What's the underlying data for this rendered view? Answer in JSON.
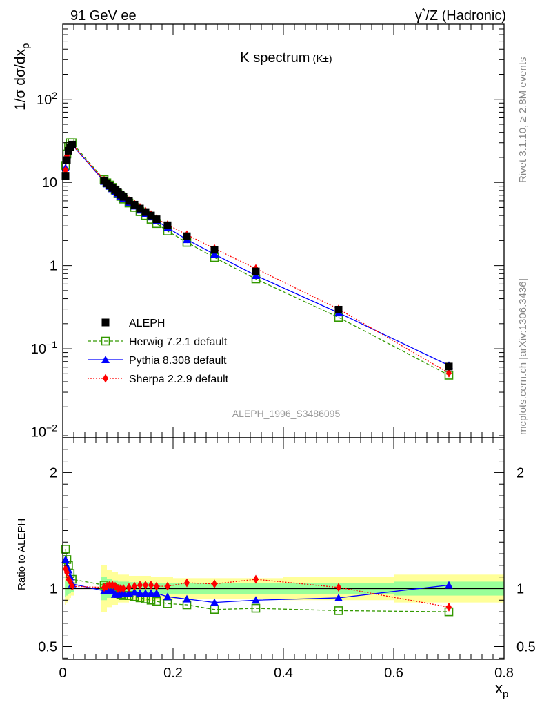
{
  "header": {
    "left": "91 GeV ee",
    "right_prefix": "γ",
    "right_sup": "*",
    "right_suffix": "/Z (Hadronic)"
  },
  "main_title": "K spectrum",
  "main_title_note": "(K±)",
  "side_labels": {
    "rivet": "Rivet 3.1.10, ≥ 2.8M events",
    "mcplots": "mcplots.cern.ch [arXiv:1306.3436]"
  },
  "analysis_id": "ALEPH_1996_S3486095",
  "y_axis_label": "1/σ dσ/dx",
  "y_axis_label_sub": "p",
  "ratio_axis_label": "Ratio to ALEPH",
  "x_axis_label": "x",
  "x_axis_label_sub": "p",
  "colors": {
    "data": "#000000",
    "herwig": "#339900",
    "pythia": "#0000ff",
    "sherpa": "#ff0000",
    "band_outer": "#ffff99",
    "band_inner": "#99ff99"
  },
  "chart_data": [
    {
      "type": "line",
      "panel": "main",
      "y_scale": "log",
      "xlim": [
        0,
        0.8
      ],
      "ylim": [
        0.0085,
        800
      ],
      "x_ticks": [
        "0",
        "0.2",
        "0.4",
        "0.6",
        "0.8"
      ],
      "y_ticks": [
        "10−2",
        "10−1",
        "1",
        "10",
        "102"
      ],
      "legend_position": "bottom-left",
      "x": [
        0.005,
        0.0075,
        0.0105,
        0.0135,
        0.017,
        0.075,
        0.08,
        0.085,
        0.09,
        0.095,
        0.1,
        0.105,
        0.11,
        0.12,
        0.13,
        0.14,
        0.15,
        0.16,
        0.17,
        0.19,
        0.225,
        0.275,
        0.35,
        0.5,
        0.7
      ],
      "series": [
        {
          "name": "ALEPH",
          "style": "points",
          "values": [
            12.0,
            18.5,
            24.0,
            26.5,
            28.5,
            10.5,
            9.8,
            9.2,
            8.6,
            8.1,
            7.6,
            7.1,
            6.7,
            6.0,
            5.4,
            4.85,
            4.4,
            4.0,
            3.6,
            3.05,
            2.25,
            1.55,
            0.85,
            0.295,
            0.061
          ]
        },
        {
          "name": "Herwig 7.2.1 default",
          "style": "dashed",
          "values": [
            16.0,
            22.0,
            27.5,
            30.0,
            30.0,
            10.8,
            9.9,
            9.3,
            8.7,
            8.1,
            7.3,
            6.8,
            6.3,
            5.65,
            5.0,
            4.45,
            4.0,
            3.6,
            3.2,
            2.6,
            1.9,
            1.25,
            0.69,
            0.238,
            0.048
          ]
        },
        {
          "name": "Pythia 8.308 default",
          "style": "solid",
          "values": [
            15.0,
            21.0,
            26.5,
            28.5,
            28.5,
            10.3,
            9.6,
            9.0,
            8.4,
            7.7,
            7.2,
            6.8,
            6.4,
            5.75,
            5.2,
            4.65,
            4.2,
            3.85,
            3.45,
            2.85,
            2.05,
            1.37,
            0.76,
            0.27,
            0.063
          ]
        },
        {
          "name": "Sherpa 2.2.9 default",
          "style": "dotted",
          "values": [
            14.0,
            21.0,
            26.0,
            28.0,
            28.5,
            10.6,
            10.0,
            9.5,
            8.9,
            8.3,
            7.6,
            7.1,
            6.7,
            6.05,
            5.5,
            5.0,
            4.5,
            4.1,
            3.65,
            3.1,
            2.35,
            1.6,
            0.92,
            0.3,
            0.051
          ]
        }
      ]
    },
    {
      "type": "line",
      "panel": "ratio",
      "xlim": [
        0,
        0.8
      ],
      "ylim": [
        0.39,
        2.3
      ],
      "x_ticks": [
        "0",
        "0.2",
        "0.4",
        "0.6",
        "0.8"
      ],
      "y_ticks": [
        "0.5",
        "1",
        "2"
      ],
      "x": [
        0.005,
        0.0075,
        0.0105,
        0.0135,
        0.017,
        0.075,
        0.08,
        0.085,
        0.09,
        0.095,
        0.1,
        0.105,
        0.11,
        0.12,
        0.13,
        0.14,
        0.15,
        0.16,
        0.17,
        0.19,
        0.225,
        0.275,
        0.35,
        0.5,
        0.7
      ],
      "series": [
        {
          "name": "Herwig 7.2.1 default",
          "style": "dashed",
          "values": [
            1.34,
            1.25,
            1.2,
            1.13,
            1.08,
            1.03,
            1.01,
            1.01,
            1.01,
            1.0,
            0.96,
            0.95,
            0.94,
            0.94,
            0.93,
            0.92,
            0.91,
            0.9,
            0.89,
            0.87,
            0.86,
            0.82,
            0.83,
            0.81,
            0.8
          ]
        },
        {
          "name": "Pythia 8.308 default",
          "style": "solid",
          "values": [
            1.25,
            1.19,
            1.16,
            1.1,
            1.04,
            0.98,
            0.98,
            0.98,
            0.98,
            0.95,
            0.95,
            0.96,
            0.96,
            0.96,
            0.97,
            0.96,
            0.96,
            0.96,
            0.96,
            0.93,
            0.91,
            0.88,
            0.9,
            0.92,
            1.03
          ]
        },
        {
          "name": "Sherpa 2.2.9 default",
          "style": "dotted",
          "values": [
            1.17,
            1.14,
            1.08,
            1.06,
            1.02,
            1.01,
            1.02,
            1.03,
            1.03,
            1.02,
            1.0,
            1.0,
            1.0,
            1.01,
            1.02,
            1.03,
            1.03,
            1.03,
            1.02,
            1.02,
            1.05,
            1.04,
            1.08,
            1.01,
            0.84
          ]
        }
      ],
      "bands": {
        "x_edges": [
          0.004,
          0.006,
          0.009,
          0.012,
          0.015,
          0.02,
          0.07,
          0.08,
          0.09,
          0.1,
          0.12,
          0.14,
          0.16,
          0.2,
          0.25,
          0.3,
          0.4,
          0.6,
          0.8
        ],
        "outer": [
          0.14,
          0.12,
          0.1,
          0.08,
          0.06,
          0.0,
          0.2,
          0.16,
          0.14,
          0.12,
          0.11,
          0.11,
          0.1,
          0.09,
          0.09,
          0.09,
          0.1,
          0.12
        ],
        "inner": [
          0.07,
          0.06,
          0.05,
          0.04,
          0.03,
          0.0,
          0.1,
          0.08,
          0.07,
          0.06,
          0.055,
          0.055,
          0.05,
          0.045,
          0.045,
          0.045,
          0.05,
          0.06
        ]
      }
    }
  ]
}
